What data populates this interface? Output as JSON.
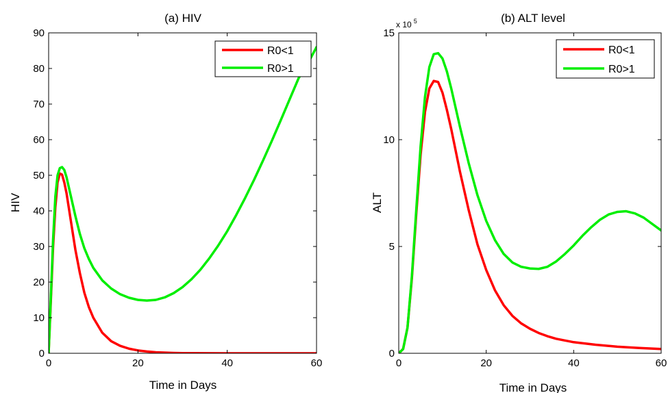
{
  "chart_data": [
    {
      "type": "line",
      "title": "(a) HIV",
      "xlabel": "Time in Days",
      "ylabel": "HIV",
      "xlim": [
        0,
        60
      ],
      "ylim": [
        0,
        90
      ],
      "xticks": [
        0,
        20,
        40,
        60
      ],
      "yticks": [
        0,
        10,
        20,
        30,
        40,
        50,
        60,
        70,
        80,
        90
      ],
      "exponent_label": "",
      "legend": {
        "position": "top-right",
        "entries": [
          "R0<1",
          "R0>1"
        ]
      },
      "series": [
        {
          "name": "R0<1",
          "color": "#ff0000",
          "x": [
            0,
            0.5,
            1,
            1.5,
            2,
            2.5,
            3,
            3.5,
            4,
            5,
            6,
            7,
            8,
            9,
            10,
            12,
            14,
            16,
            18,
            20,
            22,
            24,
            26,
            28,
            30,
            35,
            40,
            45,
            50,
            55,
            60
          ],
          "y": [
            0,
            15,
            30,
            41,
            48,
            50.5,
            50.2,
            48,
            45,
            37,
            29,
            22.5,
            17,
            13,
            10,
            5.8,
            3.4,
            2.1,
            1.3,
            0.8,
            0.5,
            0.3,
            0.2,
            0.1,
            0.06,
            0.02,
            0,
            0,
            0,
            0,
            0
          ]
        },
        {
          "name": "R0>1",
          "color": "#00ee00",
          "x": [
            0,
            0.5,
            1,
            1.5,
            2,
            2.5,
            3,
            3.5,
            4,
            5,
            6,
            7,
            8,
            9,
            10,
            12,
            14,
            16,
            18,
            20,
            22,
            24,
            26,
            28,
            30,
            32,
            34,
            36,
            38,
            40,
            42,
            44,
            46,
            48,
            50,
            52,
            54,
            56,
            58,
            60
          ],
          "y": [
            0,
            16,
            32,
            44,
            50,
            52,
            52.3,
            51.5,
            49.5,
            44,
            38.5,
            33.5,
            29.5,
            26.5,
            24,
            20.5,
            18.2,
            16.6,
            15.6,
            15,
            14.8,
            15,
            15.7,
            16.9,
            18.6,
            20.8,
            23.5,
            26.7,
            30.3,
            34.3,
            38.8,
            43.6,
            48.7,
            54.1,
            59.7,
            65.5,
            71.4,
            77.3,
            81.3,
            86
          ]
        }
      ]
    },
    {
      "type": "line",
      "title": "(b) ALT level",
      "xlabel": "Time in Days",
      "ylabel": "ALT",
      "xlim": [
        0,
        60
      ],
      "ylim": [
        0,
        15
      ],
      "xticks": [
        0,
        20,
        40,
        60
      ],
      "yticks": [
        0,
        5,
        10,
        15
      ],
      "exponent_label": "x 10",
      "exponent_power": "5",
      "legend": {
        "position": "top-right",
        "entries": [
          "R0<1",
          "R0>1"
        ]
      },
      "series": [
        {
          "name": "R0<1",
          "color": "#ff0000",
          "x": [
            0,
            1,
            2,
            3,
            4,
            5,
            6,
            7,
            8,
            9,
            10,
            11,
            12,
            14,
            16,
            18,
            20,
            22,
            24,
            26,
            28,
            30,
            32,
            34,
            36,
            38,
            40,
            45,
            50,
            55,
            60
          ],
          "y": [
            0,
            0.2,
            1.2,
            3.5,
            6.5,
            9.3,
            11.3,
            12.4,
            12.75,
            12.7,
            12.2,
            11.4,
            10.5,
            8.5,
            6.7,
            5.1,
            3.9,
            2.95,
            2.25,
            1.75,
            1.4,
            1.15,
            0.95,
            0.8,
            0.68,
            0.6,
            0.52,
            0.4,
            0.31,
            0.25,
            0.2
          ]
        },
        {
          "name": "R0>1",
          "color": "#00ee00",
          "x": [
            0,
            1,
            2,
            3,
            4,
            5,
            6,
            7,
            8,
            9,
            10,
            11,
            12,
            14,
            16,
            18,
            20,
            22,
            24,
            26,
            28,
            30,
            32,
            34,
            36,
            38,
            40,
            42,
            44,
            46,
            48,
            50,
            52,
            54,
            56,
            58,
            60
          ],
          "y": [
            0,
            0.2,
            1.2,
            3.6,
            6.7,
            9.7,
            12,
            13.4,
            14,
            14.05,
            13.8,
            13.2,
            12.4,
            10.6,
            8.9,
            7.4,
            6.2,
            5.3,
            4.65,
            4.25,
            4.05,
            3.97,
            3.95,
            4.05,
            4.3,
            4.65,
            5.05,
            5.5,
            5.9,
            6.25,
            6.5,
            6.62,
            6.65,
            6.55,
            6.35,
            6.05,
            5.75
          ]
        }
      ]
    }
  ]
}
